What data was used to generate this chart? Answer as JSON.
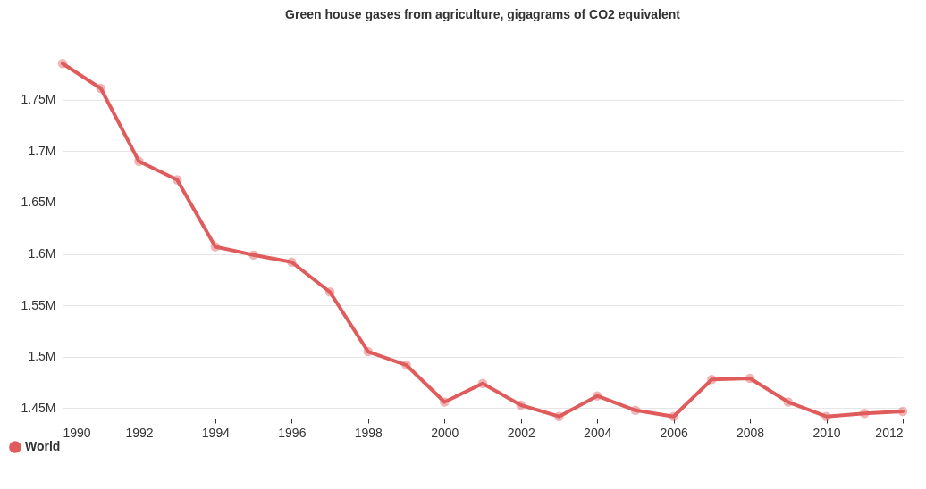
{
  "chart_data": {
    "type": "line",
    "title": "Green house gases from agriculture, gigagrams of CO2 equivalent",
    "x": [
      1990,
      1991,
      1992,
      1993,
      1994,
      1995,
      1996,
      1997,
      1998,
      1999,
      2000,
      2001,
      2002,
      2003,
      2004,
      2005,
      2006,
      2007,
      2008,
      2009,
      2010,
      2011,
      2012
    ],
    "series": [
      {
        "name": "World",
        "color": "#e05c5c",
        "values": [
          1785000,
          1761000,
          1690000,
          1672000,
          1607000,
          1599000,
          1592000,
          1563000,
          1505000,
          1492000,
          1456000,
          1474000,
          1453000,
          1442000,
          1462000,
          1448000,
          1442000,
          1478000,
          1479000,
          1456000,
          1442000,
          1445000,
          1447000
        ]
      }
    ],
    "xlim": [
      1990,
      2012
    ],
    "xticks": [
      1990,
      1992,
      1994,
      1996,
      1998,
      2000,
      2002,
      2004,
      2006,
      2008,
      2010,
      2012
    ],
    "ylim": [
      1440000,
      1800000
    ],
    "yticks": [
      {
        "value": 1450000,
        "label": "1.45M"
      },
      {
        "value": 1500000,
        "label": "1.5M"
      },
      {
        "value": 1550000,
        "label": "1.55M"
      },
      {
        "value": 1600000,
        "label": "1.6M"
      },
      {
        "value": 1650000,
        "label": "1.65M"
      },
      {
        "value": 1700000,
        "label": "1.7M"
      },
      {
        "value": 1750000,
        "label": "1.75M"
      }
    ],
    "grid": "y",
    "legend": "bottom left",
    "marker": "circle",
    "line_style": "solid"
  }
}
